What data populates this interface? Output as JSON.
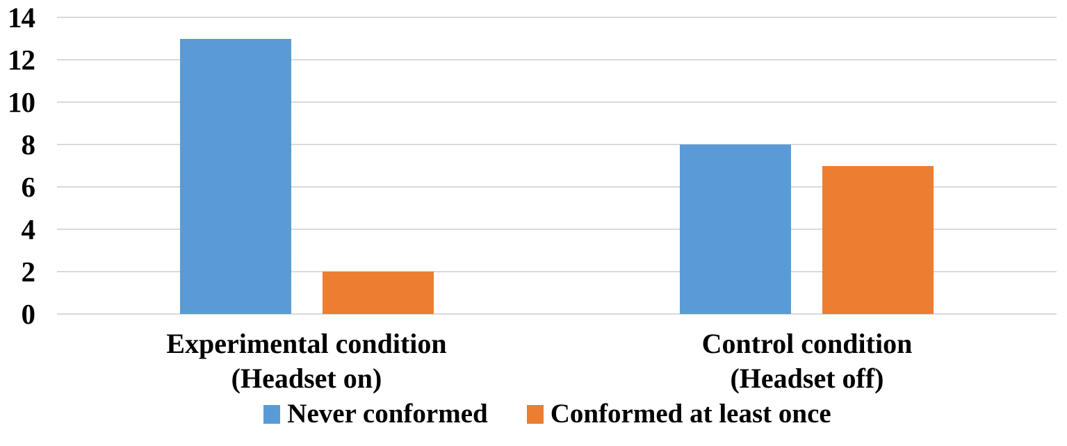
{
  "chart_data": {
    "type": "bar",
    "title": "",
    "xlabel": "",
    "ylabel": "",
    "categories": [
      "Experimental condition (Headset on)",
      "Control condition (Headset off)"
    ],
    "categories_lines": [
      [
        "Experimental condition",
        "(Headset on)"
      ],
      [
        "Control condition",
        "(Headset off)"
      ]
    ],
    "series": [
      {
        "name": "Never conformed",
        "color": "#5B9BD5",
        "values": [
          13,
          8
        ]
      },
      {
        "name": "Conformed at least once",
        "color": "#ED7D31",
        "values": [
          2,
          7
        ]
      }
    ],
    "ylim": [
      0,
      14
    ],
    "yticks": [
      0,
      2,
      4,
      6,
      8,
      10,
      12,
      14
    ],
    "grid": true,
    "gridline_color": "#D9D9D9",
    "legend_position": "bottom",
    "background_color": "#FFFFFF",
    "text_color": "#000000"
  }
}
